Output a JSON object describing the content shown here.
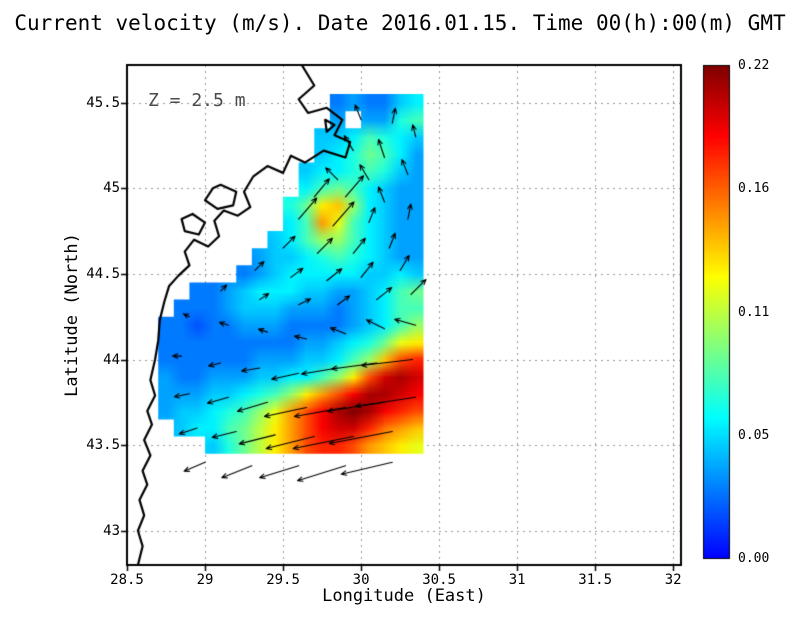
{
  "chart_data": {
    "type": "heatmap",
    "title": "Current velocity (m/s). Date 2016.01.15. Time 00(h):00(m) GMT",
    "annotation": "Z = 2.5 m",
    "xlabel": "Longitude (East)",
    "ylabel": "Latitude (North)",
    "xlim": [
      28.5,
      32.05
    ],
    "ylim": [
      42.8,
      45.72
    ],
    "grid_on": true,
    "x_ticks": [
      {
        "label": "28.5",
        "value": 28.5
      },
      {
        "label": "29",
        "value": 29
      },
      {
        "label": "29.5",
        "value": 29.5
      },
      {
        "label": "30",
        "value": 30
      },
      {
        "label": "30.5",
        "value": 30.5
      },
      {
        "label": "31",
        "value": 31
      },
      {
        "label": "31.5",
        "value": 31.5
      },
      {
        "label": "32",
        "value": 32
      }
    ],
    "y_ticks": [
      {
        "label": "43",
        "value": 43
      },
      {
        "label": "43.5",
        "value": 43.5
      },
      {
        "label": "44",
        "value": 44
      },
      {
        "label": "44.5",
        "value": 44.5
      },
      {
        "label": "45",
        "value": 45
      },
      {
        "label": "45.5",
        "value": 45.5
      }
    ],
    "colorbar": {
      "vmin": 0.0,
      "vmax": 0.22,
      "colormap": "jet",
      "tick_labels": [
        "0.22",
        "0.16",
        "0.11",
        "0.05",
        "0.00"
      ],
      "legend_position": "right"
    },
    "grid": {
      "lon_start": 28.65,
      "lon_step": 0.1,
      "ncols": 18,
      "lat_start": 45.5,
      "lat_step": -0.1,
      "nrows": 21,
      "values": [
        [
          null,
          null,
          null,
          null,
          null,
          null,
          null,
          null,
          null,
          null,
          null,
          null,
          0.03,
          0.04,
          0.03,
          0.03,
          0.05,
          0.06
        ],
        [
          null,
          null,
          null,
          null,
          null,
          null,
          null,
          null,
          null,
          null,
          null,
          null,
          0.04,
          null,
          0.04,
          0.04,
          0.07,
          0.08
        ],
        [
          null,
          null,
          null,
          null,
          null,
          null,
          null,
          null,
          null,
          null,
          null,
          0.05,
          0.05,
          0.06,
          0.08,
          0.07,
          0.06,
          0.05
        ],
        [
          null,
          null,
          null,
          null,
          null,
          null,
          null,
          null,
          null,
          null,
          null,
          0.05,
          0.06,
          0.07,
          0.09,
          0.08,
          0.06,
          0.04
        ],
        [
          null,
          null,
          null,
          null,
          null,
          null,
          null,
          null,
          null,
          null,
          0.05,
          0.06,
          0.06,
          0.07,
          0.08,
          0.07,
          0.05,
          0.04
        ],
        [
          null,
          null,
          null,
          null,
          null,
          null,
          null,
          null,
          null,
          null,
          0.06,
          0.08,
          0.09,
          0.08,
          0.06,
          0.05,
          0.04,
          0.04
        ],
        [
          null,
          null,
          null,
          null,
          null,
          null,
          null,
          null,
          null,
          0.07,
          0.09,
          0.13,
          0.14,
          0.1,
          0.06,
          0.05,
          0.04,
          0.04
        ],
        [
          null,
          null,
          null,
          null,
          null,
          null,
          null,
          null,
          null,
          0.06,
          0.08,
          0.15,
          0.12,
          0.08,
          0.06,
          0.05,
          0.04,
          0.04
        ],
        [
          null,
          null,
          null,
          null,
          null,
          null,
          null,
          null,
          0.05,
          0.06,
          0.08,
          0.1,
          0.1,
          0.08,
          0.06,
          0.05,
          0.04,
          0.04
        ],
        [
          null,
          null,
          null,
          null,
          null,
          null,
          null,
          0.04,
          0.05,
          0.05,
          0.06,
          0.07,
          0.08,
          0.07,
          0.06,
          0.05,
          0.04,
          0.04
        ],
        [
          null,
          null,
          null,
          null,
          null,
          null,
          0.03,
          0.04,
          0.05,
          0.06,
          0.06,
          0.06,
          0.06,
          0.06,
          0.05,
          0.05,
          0.06,
          0.05
        ],
        [
          null,
          null,
          null,
          0.03,
          0.03,
          0.04,
          0.05,
          0.06,
          0.06,
          0.06,
          0.05,
          0.05,
          0.04,
          0.04,
          0.05,
          0.06,
          0.08,
          0.09
        ],
        [
          null,
          null,
          0.03,
          0.03,
          0.03,
          0.04,
          0.05,
          0.05,
          0.05,
          0.04,
          0.04,
          0.04,
          0.03,
          0.04,
          0.05,
          0.06,
          0.08,
          0.08
        ],
        [
          null,
          0.03,
          0.03,
          0.02,
          0.03,
          0.03,
          0.04,
          0.04,
          0.04,
          0.03,
          0.03,
          0.03,
          0.03,
          0.04,
          0.05,
          0.06,
          0.08,
          0.1
        ],
        [
          null,
          0.03,
          0.03,
          0.03,
          0.03,
          0.03,
          0.03,
          0.03,
          0.03,
          0.03,
          0.04,
          0.04,
          0.05,
          0.06,
          0.07,
          0.09,
          0.12,
          0.13
        ],
        [
          null,
          0.03,
          0.03,
          0.03,
          0.03,
          0.03,
          0.03,
          0.04,
          0.04,
          0.04,
          0.05,
          0.05,
          0.06,
          0.08,
          0.1,
          0.14,
          0.17,
          0.18
        ],
        [
          null,
          0.04,
          0.03,
          0.03,
          0.04,
          0.04,
          0.04,
          0.05,
          0.05,
          0.06,
          0.06,
          0.08,
          0.1,
          0.13,
          0.17,
          0.2,
          0.21,
          0.2
        ],
        [
          null,
          0.04,
          0.04,
          0.04,
          0.05,
          0.05,
          0.06,
          0.07,
          0.08,
          0.1,
          0.13,
          0.15,
          0.17,
          0.19,
          0.21,
          0.21,
          0.2,
          0.19
        ],
        [
          null,
          0.04,
          0.05,
          0.05,
          0.06,
          0.07,
          0.08,
          0.1,
          0.12,
          0.15,
          0.17,
          0.19,
          0.21,
          0.22,
          0.21,
          0.19,
          0.18,
          0.17
        ],
        [
          null,
          null,
          0.05,
          0.06,
          0.06,
          0.08,
          0.09,
          0.11,
          0.13,
          0.15,
          0.17,
          0.19,
          0.2,
          0.2,
          0.18,
          0.16,
          0.15,
          0.14
        ],
        [
          null,
          null,
          null,
          null,
          0.05,
          0.07,
          0.09,
          0.11,
          0.13,
          0.15,
          0.17,
          0.18,
          0.18,
          0.17,
          0.15,
          0.14,
          0.13,
          0.12
        ]
      ]
    },
    "arrows": [
      [
        30.0,
        45.4,
        -0.02,
        0.05
      ],
      [
        30.2,
        45.38,
        0.01,
        0.05
      ],
      [
        30.35,
        45.3,
        -0.01,
        0.04
      ],
      [
        29.95,
        45.22,
        -0.03,
        0.05
      ],
      [
        30.15,
        45.18,
        -0.02,
        0.06
      ],
      [
        29.85,
        45.05,
        -0.04,
        0.04
      ],
      [
        30.05,
        45.05,
        -0.03,
        0.05
      ],
      [
        30.3,
        45.08,
        -0.02,
        0.05
      ],
      [
        29.7,
        44.95,
        0.05,
        0.06
      ],
      [
        29.9,
        44.95,
        0.06,
        0.07
      ],
      [
        30.15,
        44.92,
        -0.02,
        0.05
      ],
      [
        29.6,
        44.82,
        0.06,
        0.07
      ],
      [
        29.82,
        44.78,
        0.07,
        0.08
      ],
      [
        30.05,
        44.8,
        0.02,
        0.05
      ],
      [
        30.3,
        44.82,
        0.01,
        0.05
      ],
      [
        29.5,
        44.65,
        0.04,
        0.04
      ],
      [
        29.72,
        44.62,
        0.05,
        0.05
      ],
      [
        29.95,
        44.62,
        0.04,
        0.05
      ],
      [
        30.18,
        44.65,
        0.02,
        0.05
      ],
      [
        29.32,
        44.52,
        0.03,
        0.03
      ],
      [
        29.55,
        44.48,
        0.04,
        0.03
      ],
      [
        29.78,
        44.46,
        0.05,
        0.04
      ],
      [
        30.0,
        44.48,
        0.04,
        0.05
      ],
      [
        30.25,
        44.52,
        0.03,
        0.05
      ],
      [
        29.1,
        44.4,
        0.02,
        0.02
      ],
      [
        29.35,
        44.35,
        0.03,
        0.02
      ],
      [
        29.6,
        44.32,
        0.04,
        0.02
      ],
      [
        29.85,
        44.32,
        0.04,
        0.03
      ],
      [
        30.1,
        44.35,
        0.05,
        0.04
      ],
      [
        30.32,
        44.38,
        0.05,
        0.05
      ],
      [
        28.9,
        44.25,
        -0.02,
        0.01
      ],
      [
        29.15,
        44.2,
        -0.03,
        0.01
      ],
      [
        29.4,
        44.16,
        -0.03,
        0.01
      ],
      [
        29.65,
        44.12,
        -0.04,
        0.01
      ],
      [
        29.9,
        44.15,
        -0.05,
        0.02
      ],
      [
        30.15,
        44.18,
        -0.06,
        0.03
      ],
      [
        30.35,
        44.2,
        -0.07,
        0.02
      ],
      [
        28.85,
        44.02,
        -0.03,
        0.0
      ],
      [
        29.1,
        43.98,
        -0.04,
        -0.01
      ],
      [
        29.35,
        43.95,
        -0.06,
        -0.01
      ],
      [
        29.6,
        43.92,
        -0.09,
        -0.02
      ],
      [
        29.85,
        43.95,
        -0.12,
        -0.02
      ],
      [
        30.1,
        43.98,
        -0.15,
        -0.02
      ],
      [
        30.33,
        44.0,
        -0.17,
        -0.02
      ],
      [
        28.9,
        43.8,
        -0.05,
        -0.01
      ],
      [
        29.15,
        43.78,
        -0.07,
        -0.02
      ],
      [
        29.4,
        43.75,
        -0.1,
        -0.03
      ],
      [
        29.65,
        43.72,
        -0.14,
        -0.03
      ],
      [
        29.9,
        43.72,
        -0.17,
        -0.03
      ],
      [
        30.15,
        43.75,
        -0.19,
        -0.03
      ],
      [
        30.35,
        43.78,
        -0.2,
        -0.03
      ],
      [
        28.95,
        43.6,
        -0.06,
        -0.02
      ],
      [
        29.2,
        43.58,
        -0.08,
        -0.02
      ],
      [
        29.45,
        43.56,
        -0.12,
        -0.03
      ],
      [
        29.7,
        43.55,
        -0.16,
        -0.04
      ],
      [
        29.95,
        43.55,
        -0.2,
        -0.04
      ],
      [
        30.2,
        43.58,
        -0.21,
        -0.04
      ],
      [
        29.0,
        43.4,
        -0.07,
        -0.03
      ],
      [
        29.3,
        43.38,
        -0.1,
        -0.04
      ],
      [
        29.6,
        43.38,
        -0.13,
        -0.04
      ],
      [
        29.9,
        43.38,
        -0.16,
        -0.05
      ],
      [
        30.2,
        43.4,
        -0.17,
        -0.04
      ]
    ],
    "coastline": [
      [
        [
          29.62,
          45.72
        ],
        [
          29.7,
          45.6
        ],
        [
          29.6,
          45.52
        ],
        [
          29.66,
          45.44
        ],
        [
          29.78,
          45.47
        ],
        [
          29.88,
          45.4
        ],
        [
          29.83,
          45.31
        ],
        [
          29.93,
          45.27
        ],
        [
          29.9,
          45.18
        ],
        [
          29.76,
          45.22
        ],
        [
          29.64,
          45.15
        ],
        [
          29.55,
          45.19
        ],
        [
          29.5,
          45.09
        ],
        [
          29.4,
          45.13
        ],
        [
          29.31,
          45.07
        ],
        [
          29.25,
          44.98
        ],
        [
          29.29,
          44.89
        ],
        [
          29.21,
          44.84
        ],
        [
          29.12,
          44.87
        ],
        [
          29.06,
          44.81
        ],
        [
          29.09,
          44.72
        ],
        [
          29.02,
          44.66
        ],
        [
          28.93,
          44.7
        ],
        [
          28.87,
          44.63
        ],
        [
          28.9,
          44.55
        ],
        [
          28.83,
          44.49
        ],
        [
          28.77,
          44.43
        ],
        [
          28.74,
          44.34
        ],
        [
          28.71,
          44.23
        ],
        [
          28.7,
          44.11
        ],
        [
          28.68,
          44.0
        ],
        [
          28.65,
          43.88
        ],
        [
          28.68,
          43.79
        ],
        [
          28.63,
          43.7
        ],
        [
          28.66,
          43.62
        ],
        [
          28.61,
          43.53
        ],
        [
          28.65,
          43.44
        ],
        [
          28.6,
          43.35
        ],
        [
          28.63,
          43.27
        ],
        [
          28.58,
          43.18
        ],
        [
          28.61,
          43.09
        ],
        [
          28.57,
          43.0
        ],
        [
          28.6,
          42.91
        ],
        [
          28.57,
          42.8
        ]
      ],
      [
        [
          29.1,
          45.02
        ],
        [
          29.2,
          44.98
        ],
        [
          29.18,
          44.9
        ],
        [
          29.08,
          44.88
        ],
        [
          29.0,
          44.93
        ],
        [
          29.05,
          45.0
        ],
        [
          29.1,
          45.02
        ]
      ],
      [
        [
          28.92,
          44.85
        ],
        [
          29.0,
          44.8
        ],
        [
          28.96,
          44.73
        ],
        [
          28.87,
          44.75
        ],
        [
          28.85,
          44.82
        ],
        [
          28.92,
          44.85
        ]
      ],
      [
        [
          29.77,
          45.4
        ],
        [
          29.83,
          45.37
        ],
        [
          29.78,
          45.33
        ],
        [
          29.77,
          45.4
        ]
      ]
    ],
    "grid_lines": {
      "x": [
        29,
        29.5,
        30,
        30.5,
        31,
        31.5,
        32
      ],
      "y": [
        43,
        43.5,
        44,
        44.5,
        45,
        45.5
      ]
    }
  }
}
